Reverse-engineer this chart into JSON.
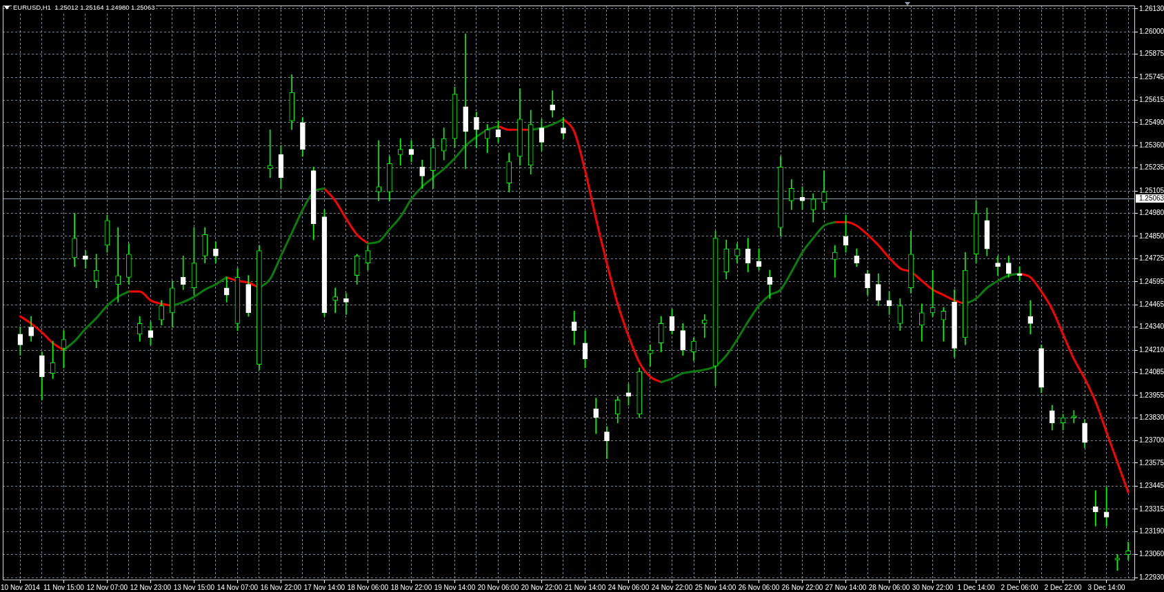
{
  "chart_data": {
    "type": "candlestick",
    "title": "EURUSD,H1  1.25012 1.25164 1.24980 1.25063",
    "categories": [
      "10 Nov 2014",
      null,
      null,
      null,
      "11 Nov 15:00",
      null,
      null,
      null,
      "12 Nov 07:00",
      null,
      null,
      null,
      "12 Nov 23:00",
      null,
      null,
      null,
      "13 Nov 15:00",
      null,
      null,
      null,
      "14 Nov 07:00",
      null,
      null,
      null,
      "16 Nov 22:00",
      null,
      null,
      null,
      "17 Nov 14:00",
      null,
      null,
      null,
      "18 Nov 06:00",
      null,
      null,
      null,
      "18 Nov 22:00",
      null,
      null,
      null,
      "19 Nov 14:00",
      null,
      null,
      null,
      "20 Nov 06:00",
      null,
      null,
      null,
      "20 Nov 22:00",
      null,
      null,
      null,
      "21 Nov 14:00",
      null,
      null,
      null,
      "24 Nov 06:00",
      null,
      null,
      null,
      "24 Nov 22:00",
      null,
      null,
      null,
      "25 Nov 14:00",
      null,
      null,
      null,
      "26 Nov 06:00",
      null,
      null,
      null,
      "26 Nov 22:00",
      null,
      null,
      null,
      "27 Nov 14:00",
      null,
      null,
      null,
      "28 Nov 06:00",
      null,
      null,
      null,
      "30 Nov 22:00",
      null,
      null,
      null,
      "1 Dec 14:00",
      null,
      null,
      null,
      "2 Dec 06:00",
      null,
      null,
      null,
      "2 Dec 22:00",
      null,
      null,
      null,
      "3 Dec 14:00",
      null,
      null
    ],
    "ylim": [
      1.22915,
      1.26149
    ],
    "yticks": [
      {
        "value": 1.2613,
        "label": "1.26130"
      },
      {
        "value": 1.26,
        "label": "1.26000"
      },
      {
        "value": 1.25875,
        "label": "1.25875"
      },
      {
        "value": 1.25745,
        "label": "1.25745"
      },
      {
        "value": 1.25615,
        "label": "1.25615"
      },
      {
        "value": 1.2549,
        "label": "1.25490"
      },
      {
        "value": 1.2536,
        "label": "1.25360"
      },
      {
        "value": 1.25235,
        "label": "1.25235"
      },
      {
        "value": 1.25105,
        "label": "1.25105"
      },
      {
        "value": 1.2498,
        "label": "1.24980"
      },
      {
        "value": 1.2485,
        "label": "1.24850"
      },
      {
        "value": 1.24725,
        "label": "1.24725"
      },
      {
        "value": 1.24595,
        "label": "1.24595"
      },
      {
        "value": 1.24465,
        "label": "1.24465"
      },
      {
        "value": 1.2434,
        "label": "1.24340"
      },
      {
        "value": 1.2421,
        "label": "1.24210"
      },
      {
        "value": 1.24085,
        "label": "1.24085"
      },
      {
        "value": 1.23955,
        "label": "1.23955"
      },
      {
        "value": 1.2383,
        "label": "1.23830"
      },
      {
        "value": 1.237,
        "label": "1.23700"
      },
      {
        "value": 1.23575,
        "label": "1.23575"
      },
      {
        "value": 1.23445,
        "label": "1.23445"
      },
      {
        "value": 1.23315,
        "label": "1.23315"
      },
      {
        "value": 1.2319,
        "label": "1.23190"
      },
      {
        "value": 1.2306,
        "label": "1.23060"
      },
      {
        "value": 1.2293,
        "label": "1.22930"
      }
    ],
    "grid": true,
    "ref_lines": [
      {
        "axis": "y",
        "value": 1.25063,
        "label": "1.25063",
        "color": "#8c9cae"
      }
    ],
    "series": [
      {
        "color": "#00ff00",
        "colors": [
          "#ffffff",
          "#ffffff",
          "#ffffff",
          "#00ff00",
          "#00ff00",
          "#00ff00",
          "#ffffff",
          "#00ff00",
          "#00ff00",
          "#00ff00",
          "#00ff00",
          "#00ff00",
          "#ffffff",
          "#00ff00",
          "#00ff00",
          "#ffffff",
          "#00ff00",
          "#00ff00",
          "#ffffff",
          "#ffffff",
          "#00ff00",
          "#ffffff",
          "#00ff00",
          "#00ff00",
          "#ffffff",
          "#00ff00",
          "#ffffff",
          "#ffffff",
          "#ffffff",
          "#00ff00",
          "#ffffff",
          "#00ff00",
          "#00ff00",
          "#00ff00",
          "#00ff00",
          "#00ff00",
          "#ffffff",
          "#ffffff",
          "#00ff00",
          "#00ff00",
          "#00ff00",
          "#ffffff",
          "#ffffff",
          "#00ff00",
          "#ffffff",
          "#00ff00",
          "#00ff00",
          "#00ff00",
          "#ffffff",
          "#ffffff",
          "#ffffff",
          "#ffffff",
          "#ffffff",
          "#ffffff",
          "#ffffff",
          "#00ff00",
          "#ffffff",
          "#00ff00",
          "#00ff00",
          "#00ff00",
          "#ffffff",
          "#ffffff",
          "#00ff00",
          "#00ff00",
          "#00ff00",
          "#00ff00",
          "#00ff00",
          "#ffffff",
          "#ffffff",
          "#ffffff",
          "#00ff00",
          "#00ff00",
          "#ffffff",
          "#00ff00",
          "#00ff00",
          "#00ff00",
          "#ffffff",
          "#ffffff",
          "#ffffff",
          "#ffffff",
          "#ffffff",
          "#00ff00",
          "#00ff00",
          "#00ff00",
          "#00ff00",
          "#00ff00",
          "#ffffff",
          "#00ff00",
          "#00ff00",
          "#ffffff",
          "#ffffff",
          "#ffffff",
          "#ffffff",
          "#ffffff",
          "#ffffff",
          "#ffffff",
          "#00ff00",
          "#00ff00",
          "#ffffff",
          "#ffffff",
          "#ffffff",
          "#00ff00",
          "#00ff00"
        ],
        "ohlc": [
          [
            1.243,
            1.2434,
            1.2418,
            1.2424
          ],
          [
            1.2434,
            1.244,
            1.2426,
            1.2429
          ],
          [
            1.2418,
            1.242,
            1.2393,
            1.2406
          ],
          [
            1.2408,
            1.2426,
            1.2405,
            1.2414
          ],
          [
            1.2422,
            1.2432,
            1.2411,
            1.2427
          ],
          [
            1.2473,
            1.2498,
            1.2468,
            1.2484
          ],
          [
            1.2474,
            1.2477,
            1.2467,
            1.2472
          ],
          [
            1.246,
            1.2475,
            1.2456,
            1.2466
          ],
          [
            1.248,
            1.2497,
            1.2476,
            1.2494
          ],
          [
            1.2458,
            1.249,
            1.2448,
            1.2463
          ],
          [
            1.2462,
            1.2481,
            1.2458,
            1.2475
          ],
          [
            1.243,
            1.244,
            1.2426,
            1.2436
          ],
          [
            1.2432,
            1.2437,
            1.2424,
            1.2428
          ],
          [
            1.2438,
            1.2449,
            1.2435,
            1.2446
          ],
          [
            1.2442,
            1.246,
            1.2434,
            1.2456
          ],
          [
            1.2462,
            1.2474,
            1.2455,
            1.2458
          ],
          [
            1.2456,
            1.249,
            1.2452,
            1.247
          ],
          [
            1.2474,
            1.249,
            1.247,
            1.2486
          ],
          [
            1.2478,
            1.2482,
            1.247,
            1.2474
          ],
          [
            1.2456,
            1.2462,
            1.2448,
            1.2452
          ],
          [
            1.2436,
            1.2467,
            1.2432,
            1.2462
          ],
          [
            1.2458,
            1.2463,
            1.244,
            1.2442
          ],
          [
            1.2413,
            1.248,
            1.241,
            1.2477
          ],
          [
            1.2523,
            1.2545,
            1.2518,
            1.2525
          ],
          [
            1.2531,
            1.2536,
            1.2512,
            1.2518
          ],
          [
            1.255,
            1.2576,
            1.2545,
            1.2566
          ],
          [
            1.2549,
            1.2552,
            1.253,
            1.2534
          ],
          [
            1.2522,
            1.2524,
            1.2483,
            1.2492
          ],
          [
            1.2496,
            1.25,
            1.244,
            1.2442
          ],
          [
            1.2449,
            1.2456,
            1.2442,
            1.2451
          ],
          [
            1.245,
            1.2453,
            1.2441,
            1.2448
          ],
          [
            1.2463,
            1.2475,
            1.2458,
            1.2474
          ],
          [
            1.247,
            1.248,
            1.2466,
            1.2477
          ],
          [
            1.251,
            1.2539,
            1.2505,
            1.2513
          ],
          [
            1.251,
            1.253,
            1.2505,
            1.2526
          ],
          [
            1.2531,
            1.254,
            1.2525,
            1.2534
          ],
          [
            1.2534,
            1.2539,
            1.2527,
            1.2531
          ],
          [
            1.2524,
            1.2528,
            1.2512,
            1.2519
          ],
          [
            1.2522,
            1.254,
            1.2512,
            1.2535
          ],
          [
            1.2533,
            1.2546,
            1.2528,
            1.254
          ],
          [
            1.254,
            1.2569,
            1.2535,
            1.2565
          ],
          [
            1.2558,
            1.2599,
            1.2523,
            1.2544
          ],
          [
            1.2552,
            1.2555,
            1.2535,
            1.2545
          ],
          [
            1.254,
            1.2548,
            1.2532,
            1.2545
          ],
          [
            1.2545,
            1.255,
            1.2538,
            1.2541
          ],
          [
            1.2515,
            1.2532,
            1.251,
            1.2527
          ],
          [
            1.253,
            1.2568,
            1.2525,
            1.2551
          ],
          [
            1.2525,
            1.2556,
            1.252,
            1.2548
          ],
          [
            1.2546,
            1.2551,
            1.2533,
            1.2538
          ],
          [
            1.2559,
            1.2567,
            1.2552,
            1.2556
          ],
          [
            1.2546,
            1.2552,
            1.254,
            1.2543
          ],
          [
            1.2437,
            1.2443,
            1.2424,
            1.2432
          ],
          [
            1.2425,
            1.2432,
            1.2411,
            1.2416
          ],
          [
            1.2388,
            1.2394,
            1.2374,
            1.2383
          ],
          [
            1.2375,
            1.2378,
            1.236,
            1.237
          ],
          [
            1.2385,
            1.2395,
            1.238,
            1.2393
          ],
          [
            1.2397,
            1.2402,
            1.239,
            1.2395
          ],
          [
            1.2385,
            1.2411,
            1.2383,
            1.2409
          ],
          [
            1.2419,
            1.2424,
            1.2412,
            1.2421
          ],
          [
            1.2425,
            1.244,
            1.242,
            1.2436
          ],
          [
            1.244,
            1.2444,
            1.243,
            1.2432
          ],
          [
            1.2432,
            1.2436,
            1.2418,
            1.2421
          ],
          [
            1.242,
            1.2428,
            1.2415,
            1.2426
          ],
          [
            1.2436,
            1.2441,
            1.2428,
            1.2438
          ],
          [
            1.2412,
            1.2488,
            1.2401,
            1.2484
          ],
          [
            1.2465,
            1.2483,
            1.2461,
            1.2478
          ],
          [
            1.2474,
            1.2481,
            1.247,
            1.2478
          ],
          [
            1.2478,
            1.2484,
            1.2465,
            1.247
          ],
          [
            1.2471,
            1.2478,
            1.2466,
            1.2468
          ],
          [
            1.2462,
            1.2466,
            1.245,
            1.2458
          ],
          [
            1.249,
            1.253,
            1.2485,
            1.2524
          ],
          [
            1.2505,
            1.2517,
            1.25,
            1.2512
          ],
          [
            1.2507,
            1.2513,
            1.25,
            1.2505
          ],
          [
            1.25,
            1.2509,
            1.2493,
            1.2506
          ],
          [
            1.2504,
            1.2522,
            1.25,
            1.251
          ],
          [
            1.2472,
            1.248,
            1.2462,
            1.2476
          ],
          [
            1.2485,
            1.2497,
            1.2476,
            1.248
          ],
          [
            1.2474,
            1.2478,
            1.2468,
            1.247
          ],
          [
            1.2464,
            1.2466,
            1.2452,
            1.2456
          ],
          [
            1.2458,
            1.2464,
            1.2446,
            1.2449
          ],
          [
            1.2449,
            1.2454,
            1.2441,
            1.2446
          ],
          [
            1.2436,
            1.245,
            1.2432,
            1.2446
          ],
          [
            1.2456,
            1.2488,
            1.2453,
            1.2475
          ],
          [
            1.2435,
            1.2447,
            1.2426,
            1.2442
          ],
          [
            1.2442,
            1.2466,
            1.244,
            1.2445
          ],
          [
            1.2438,
            1.2445,
            1.2426,
            1.2443
          ],
          [
            1.2448,
            1.2455,
            1.2417,
            1.2422
          ],
          [
            1.2428,
            1.2476,
            1.2424,
            1.2466
          ],
          [
            1.2475,
            1.2505,
            1.247,
            1.2498
          ],
          [
            1.2494,
            1.2501,
            1.2474,
            1.2478
          ],
          [
            1.247,
            1.2474,
            1.2463,
            1.2468
          ],
          [
            1.247,
            1.2474,
            1.2462,
            1.2464
          ],
          [
            1.2464,
            1.2468,
            1.246,
            1.2463
          ],
          [
            1.244,
            1.2449,
            1.243,
            1.2436
          ],
          [
            1.2422,
            1.2424,
            1.2397,
            1.24
          ],
          [
            1.2387,
            1.239,
            1.2376,
            1.238
          ],
          [
            1.238,
            1.2385,
            1.2376,
            1.2383
          ],
          [
            1.2383,
            1.2387,
            1.238,
            1.2384
          ],
          [
            1.238,
            1.2382,
            1.2366,
            1.2369
          ],
          [
            1.2333,
            1.2342,
            1.2322,
            1.233
          ],
          [
            1.233,
            1.2344,
            1.2322,
            1.2327
          ],
          [
            1.2303,
            1.2306,
            1.2297,
            1.2304
          ],
          [
            1.2306,
            1.2313,
            1.2303,
            1.2308
          ]
        ]
      },
      {
        "type": "line",
        "color": "#0a7d0a",
        "values": [
          null,
          null,
          null,
          null,
          1.2421,
          1.2426,
          1.2433,
          1.2439,
          1.2446,
          1.2451,
          1.2454,
          null,
          null,
          null,
          1.2446,
          1.2448,
          1.2451,
          1.2455,
          1.2458,
          1.2462,
          null,
          null,
          1.2456,
          1.2461,
          1.2474,
          1.2487,
          1.25,
          1.251,
          1.2512,
          null,
          null,
          null,
          1.2481,
          1.2482,
          1.2489,
          1.2496,
          1.2506,
          1.2513,
          1.2518,
          1.2523,
          1.2529,
          1.2536,
          1.2541,
          1.2545,
          1.2547,
          null,
          null,
          1.2545,
          1.2546,
          1.2548,
          1.2551,
          null,
          null,
          null,
          null,
          null,
          null,
          null,
          null,
          1.2403,
          1.2405,
          1.2408,
          1.2409,
          1.241,
          1.2412,
          1.2418,
          1.2427,
          1.2437,
          1.2446,
          1.2452,
          1.2455,
          1.2465,
          1.2476,
          1.2484,
          1.2491,
          1.2493,
          null,
          null,
          null,
          null,
          null,
          null,
          null,
          null,
          null,
          null,
          null,
          1.2447,
          1.245,
          1.2456,
          1.246,
          1.2463,
          1.2464,
          null,
          null,
          null,
          null,
          null,
          null,
          null,
          null,
          null,
          null
        ]
      },
      {
        "type": "line",
        "color": "#ff0000",
        "values": [
          1.244,
          1.2436,
          1.2431,
          1.2425,
          1.2421,
          null,
          null,
          null,
          null,
          null,
          1.2454,
          1.2454,
          1.2449,
          1.2447,
          1.2446,
          null,
          null,
          null,
          null,
          1.2462,
          1.246,
          1.2459,
          1.2456,
          null,
          null,
          null,
          null,
          null,
          1.2512,
          1.2505,
          1.2495,
          1.2486,
          1.2481,
          null,
          null,
          null,
          null,
          null,
          null,
          null,
          null,
          null,
          null,
          null,
          1.2547,
          1.2545,
          1.2545,
          1.2545,
          null,
          null,
          1.2551,
          1.2544,
          1.2522,
          1.2495,
          1.247,
          1.2447,
          1.2429,
          1.2414,
          1.2406,
          1.2403,
          null,
          null,
          null,
          null,
          null,
          null,
          null,
          null,
          null,
          null,
          null,
          null,
          null,
          null,
          null,
          1.2493,
          1.2493,
          1.2491,
          1.2486,
          1.248,
          1.2473,
          1.2467,
          1.2465,
          1.246,
          1.2455,
          1.2452,
          1.2449,
          1.2447,
          null,
          null,
          null,
          null,
          1.2464,
          1.2462,
          1.2454,
          1.2444,
          1.243,
          1.2416,
          1.2405,
          1.2392,
          1.2375,
          1.2358,
          1.2341
        ]
      }
    ]
  }
}
